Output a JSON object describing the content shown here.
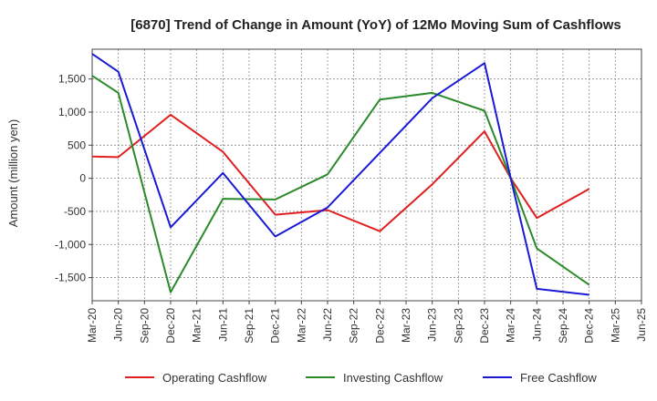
{
  "chart_data": {
    "type": "line",
    "title": "[6870]  Trend of Change in Amount (YoY) of 12Mo Moving Sum of Cashflows",
    "ylabel": "Amount (million yen)",
    "xlabel": "",
    "ylim": [
      -1850,
      1950
    ],
    "yticks": [
      -1500,
      -1000,
      -500,
      0,
      500,
      1000,
      1500
    ],
    "ytick_labels": [
      "-1,500",
      "-1,000",
      "-500",
      "0",
      "500",
      "1,000",
      "1,500"
    ],
    "categories": [
      "Mar-20",
      "Jun-20",
      "Sep-20",
      "Dec-20",
      "Mar-21",
      "Jun-21",
      "Sep-21",
      "Dec-21",
      "Mar-22",
      "Jun-22",
      "Sep-22",
      "Dec-22",
      "Mar-23",
      "Jun-23",
      "Sep-23",
      "Dec-23",
      "Mar-24",
      "Jun-24",
      "Sep-24",
      "Dec-24",
      "Mar-25",
      "Jun-25"
    ],
    "grid": true,
    "legend_position": "bottom",
    "series": [
      {
        "name": "Operating Cashflow",
        "color": "#e02020",
        "points": [
          [
            0,
            330
          ],
          [
            1,
            320
          ],
          [
            3,
            960
          ],
          [
            5,
            400
          ],
          [
            7,
            -550
          ],
          [
            9,
            -480
          ],
          [
            11,
            -800
          ],
          [
            13,
            -90
          ],
          [
            15,
            710
          ],
          [
            16,
            0
          ],
          [
            17,
            -600
          ],
          [
            19,
            -160
          ]
        ]
      },
      {
        "name": "Investing Cashflow",
        "color": "#2a8a2a",
        "points": [
          [
            0,
            1550
          ],
          [
            1,
            1290
          ],
          [
            3,
            -1720
          ],
          [
            5,
            -310
          ],
          [
            7,
            -320
          ],
          [
            9,
            60
          ],
          [
            11,
            1190
          ],
          [
            13,
            1290
          ],
          [
            15,
            1020
          ],
          [
            16,
            0
          ],
          [
            17,
            -1060
          ],
          [
            19,
            -1610
          ]
        ]
      },
      {
        "name": "Free Cashflow",
        "color": "#1a1ad6",
        "points": [
          [
            0,
            1880
          ],
          [
            1,
            1610
          ],
          [
            3,
            -740
          ],
          [
            5,
            80
          ],
          [
            7,
            -880
          ],
          [
            9,
            -440
          ],
          [
            13,
            1210
          ],
          [
            15,
            1740
          ],
          [
            16,
            0
          ],
          [
            17,
            -1670
          ],
          [
            19,
            -1760
          ]
        ]
      }
    ]
  }
}
